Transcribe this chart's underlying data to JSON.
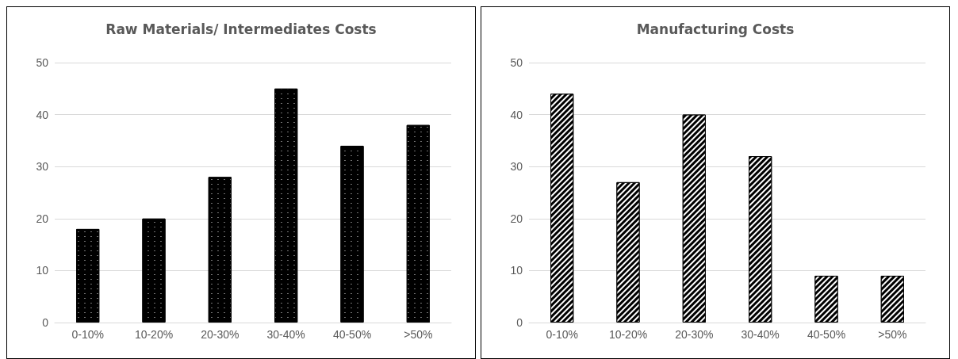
{
  "chart_data": [
    {
      "type": "bar",
      "title": "Raw Materials/ Intermediates Costs",
      "categories": [
        "0-10%",
        "10-20%",
        "20-30%",
        "30-40%",
        "40-50%",
        ">50%"
      ],
      "values": [
        18,
        20,
        28,
        45,
        34,
        38
      ],
      "color": "#000000",
      "ylim": [
        0,
        50
      ],
      "yticks": [
        0,
        10,
        20,
        30,
        40,
        50
      ],
      "grid": "y"
    },
    {
      "type": "bar",
      "title": "Manufacturing Costs",
      "categories": [
        "0-10%",
        "10-20%",
        "20-30%",
        "30-40%",
        "40-50%",
        ">50%"
      ],
      "values": [
        44,
        27,
        40,
        32,
        9,
        9
      ],
      "color": "#000000",
      "ylim": [
        0,
        50
      ],
      "yticks": [
        0,
        10,
        20,
        30,
        40,
        50
      ],
      "grid": "y"
    }
  ]
}
